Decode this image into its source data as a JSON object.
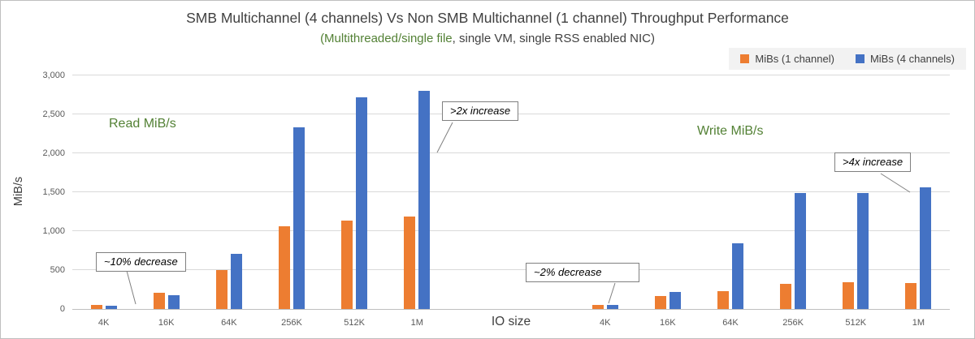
{
  "title": "SMB Multichannel (4 channels) Vs Non SMB Multichannel (1 channel) Throughput Performance",
  "subtitle": {
    "highlight": "(Multithreaded/single file",
    "rest": ", single VM, single RSS enabled NIC)"
  },
  "legend": {
    "items": [
      {
        "label": "MiBs (1 channel)",
        "color": "#ED7D31"
      },
      {
        "label": "MiBs (4 channels)",
        "color": "#4472C4"
      }
    ]
  },
  "annotations": {
    "read_section_label": "Read MiB/s",
    "write_section_label": "Write MiB/s",
    "read_decrease": "~10% decrease",
    "read_increase": ">2x increase",
    "write_decrease": "~2% decrease",
    "write_increase": ">4x increase"
  },
  "chart_data": {
    "type": "bar",
    "title": "SMB Multichannel (4 channels) Vs Non SMB Multichannel (1 channel) Throughput Performance",
    "subtitle": "(Multithreaded/single file, single VM, single RSS enabled NIC)",
    "xlabel": "IO size",
    "ylabel": "MiB/s",
    "ylim": [
      0,
      3000
    ],
    "ytick_step": 500,
    "ytick_labels": [
      "0",
      "500",
      "1,000",
      "1,500",
      "2,000",
      "2,500",
      "3,000"
    ],
    "grid": true,
    "legend_position": "top-right",
    "sections": [
      "Read MiB/s",
      "Write MiB/s"
    ],
    "gap_before_category_index": 6,
    "categories": [
      "4K",
      "16K",
      "64K",
      "256K",
      "512K",
      "1M",
      "4K",
      "16K",
      "64K",
      "256K",
      "512K",
      "1M"
    ],
    "series": [
      {
        "name": "MiBs (1 channel)",
        "color": "#ED7D31",
        "values": [
          55,
          205,
          505,
          1060,
          1140,
          1190,
          55,
          165,
          230,
          320,
          340,
          330
        ]
      },
      {
        "name": "MiBs (4 channels)",
        "color": "#4472C4",
        "values": [
          45,
          180,
          710,
          2330,
          2720,
          2800,
          50,
          215,
          840,
          1490,
          1490,
          1560
        ]
      }
    ]
  }
}
